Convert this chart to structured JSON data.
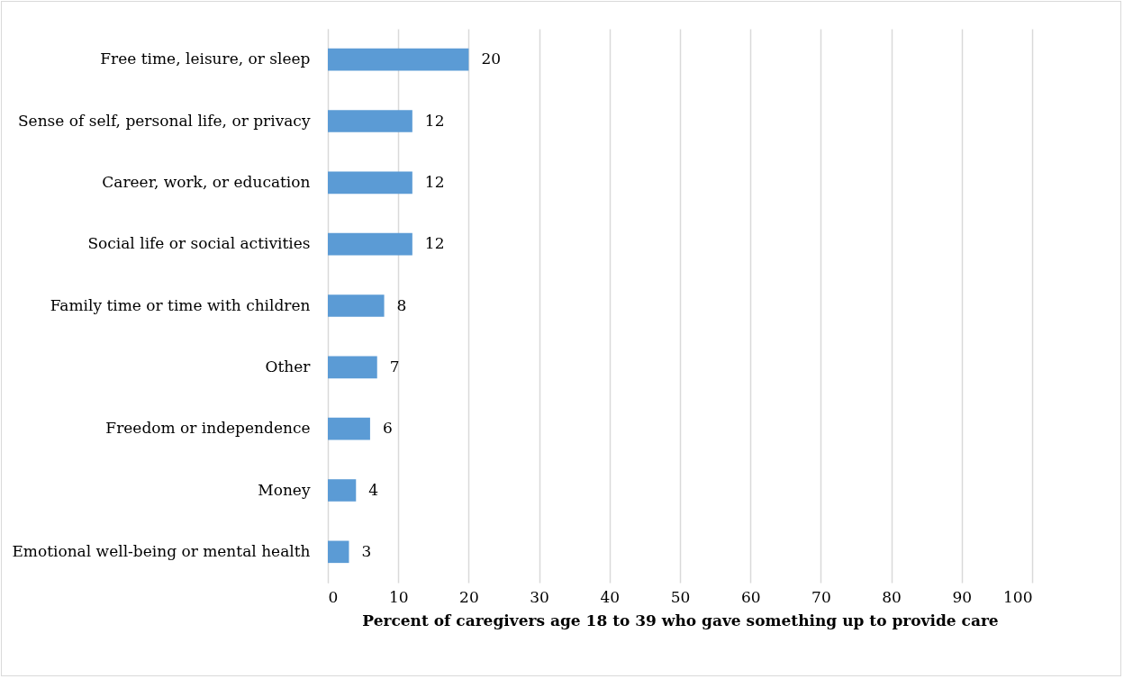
{
  "chart_data": {
    "type": "bar",
    "orientation": "horizontal",
    "xlabel": "Percent of caregivers age 18 to 39 who gave something up to provide care",
    "categories": [
      "Free time, leisure, or sleep",
      "Sense of self, personal life, or privacy",
      "Career, work, or education",
      "Social life or social activities",
      "Family time or time with children",
      "Other",
      "Freedom or independence",
      "Money",
      "Emotional well-being or mental health"
    ],
    "values": [
      20,
      12,
      12,
      12,
      8,
      7,
      6,
      4,
      3
    ],
    "color": "#5b9bd5",
    "xlim": [
      0,
      100
    ],
    "xticks": [
      0,
      10,
      20,
      30,
      40,
      50,
      60,
      70,
      80,
      90,
      100
    ],
    "grid": "x",
    "data_labels": true
  }
}
